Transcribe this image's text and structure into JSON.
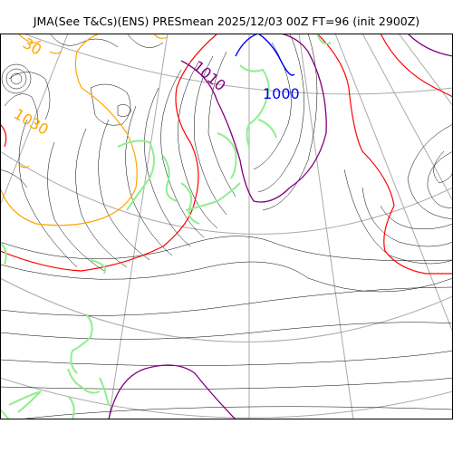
{
  "title": "JMA(See T&Cs)(ENS) PRESmean 2025/12/03 00Z FT=96 (init 2900Z)",
  "contour_labels": [
    {
      "text": "1030",
      "color": "#ffa500"
    },
    {
      "text": "1010",
      "color": "#800080"
    },
    {
      "text": "1000",
      "color": "#0000ff"
    },
    {
      "text": "30",
      "color": "#ffa500"
    }
  ],
  "colors": {
    "isobar_thin": "#000000",
    "isobar_1020": "#ff0000",
    "isobar_1010": "#800080",
    "isobar_1000": "#0000ff",
    "isobar_1030": "#ffa500",
    "coastline": "#90ee90",
    "graticule": "#aaaaaa"
  }
}
